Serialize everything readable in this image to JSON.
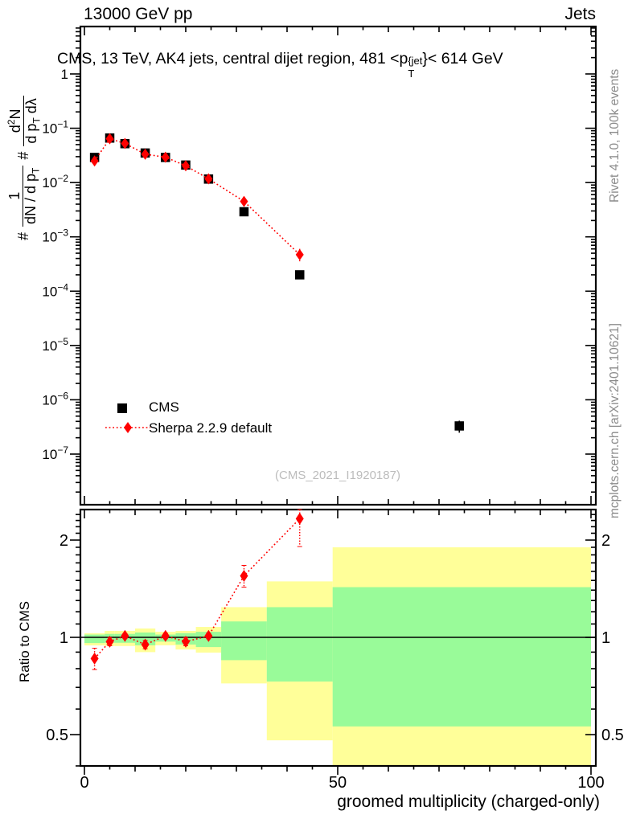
{
  "header": {
    "beam": "13000 GeV pp",
    "process": "Jets"
  },
  "title": {
    "pre": "CMS, 13 TeV, AK4 jets, central dijet region, 481 <p",
    "sup": "{jet",
    "sub": "T",
    "post": "}< 614 GeV"
  },
  "ylabel": {
    "hash1": "#",
    "f1_num": "1",
    "f1_den": "dN / d p",
    "f1_den_sub": "T",
    "hash2": "#",
    "f2_num_pre": "d",
    "f2_num_sup": "2",
    "f2_num_post": "N",
    "f2_den_pre": "d p",
    "f2_den_sub": "T",
    "f2_den_post": " dλ"
  },
  "legend": {
    "items": [
      {
        "label": "CMS",
        "marker": "black-square"
      },
      {
        "label": "Sherpa 2.2.9 default",
        "marker": "red-diamond-dotted-line"
      }
    ]
  },
  "watermark": "(CMS_2021_I1920187)",
  "credits": {
    "top": "Rivet 4.1.0,  100k events",
    "bottom": "mcplots.cern.ch [arXiv:2401.10621]"
  },
  "ratio_ylabel": "Ratio to CMS",
  "xlabel": "groomed multiplicity (charged-only)",
  "colors": {
    "cms": "#000000",
    "sherpa": "#ff0000",
    "band_yellow": "#ffff99",
    "band_green": "#99fb99",
    "frame": "#000000",
    "credits_gray": "#8b8b8b",
    "watermark_gray": "#bcbcbc"
  },
  "chart_data": [
    {
      "type": "scatter",
      "panel": "main",
      "title": "CMS, 13 TeV, AK4 jets, central dijet region, 481 <p_T^jet < 614 GeV",
      "xlabel": "groomed multiplicity (charged-only)",
      "ylabel": "# 1/(dN/dp_T) # d2N/(dp_T dLambda)",
      "ylog": true,
      "xlim": [
        -0.8,
        101
      ],
      "ylim": [
        1.2e-08,
        7.4
      ],
      "x_major_ticks": [
        0,
        50,
        100
      ],
      "y_decades": [
        0,
        -1,
        -2,
        -3,
        -4,
        -5,
        -6,
        -7
      ],
      "grid": false,
      "legend_position": "left-middle",
      "series": [
        {
          "name": "CMS",
          "marker": "square",
          "color": "#000000",
          "x": [
            2,
            5,
            8,
            12,
            16,
            20,
            24.5,
            31.5,
            42.5,
            74
          ],
          "y": [
            0.029,
            0.066,
            0.052,
            0.035,
            0.029,
            0.021,
            0.0116,
            0.0029,
            0.0002,
            3.3e-07
          ],
          "yerr_rel": [
            0.07,
            0.03,
            0.03,
            0.03,
            0.03,
            0.03,
            0.035,
            0.05,
            0.08,
            0.25
          ]
        },
        {
          "name": "Sherpa 2.2.9 default",
          "marker": "diamond",
          "line": "dotted",
          "color": "#ff0000",
          "x": [
            2,
            5,
            8,
            12,
            16,
            20,
            24.5,
            31.5,
            42.5
          ],
          "y": [
            0.025,
            0.064,
            0.0525,
            0.0333,
            0.0293,
            0.0204,
            0.0117,
            0.0045,
            0.00047
          ],
          "yerr_rel": [
            0.13,
            0.04,
            0.03,
            0.03,
            0.03,
            0.035,
            0.04,
            0.09,
            0.28
          ]
        }
      ]
    },
    {
      "type": "ratio",
      "panel": "ratio",
      "ylabel": "Ratio to CMS",
      "ylog": true,
      "ylim": [
        0.4,
        2.5
      ],
      "y_major_ticks": [
        0.5,
        1,
        2
      ],
      "reference_line": 1,
      "bands": [
        {
          "x0": 0,
          "x1": 4,
          "yellow": [
            0.944,
            1.03
          ],
          "green": [
            0.96,
            1.02
          ]
        },
        {
          "x0": 4,
          "x1": 6,
          "yellow": [
            0.94,
            1.047
          ],
          "green": [
            0.962,
            1.025
          ]
        },
        {
          "x0": 6,
          "x1": 10,
          "yellow": [
            0.94,
            1.047
          ],
          "green": [
            0.962,
            1.025
          ]
        },
        {
          "x0": 10,
          "x1": 14,
          "yellow": [
            0.9,
            1.065
          ],
          "green": [
            0.945,
            1.035
          ]
        },
        {
          "x0": 14,
          "x1": 18,
          "yellow": [
            0.945,
            1.04
          ],
          "green": [
            0.97,
            1.02
          ]
        },
        {
          "x0": 18,
          "x1": 22,
          "yellow": [
            0.917,
            1.047
          ],
          "green": [
            0.95,
            1.03
          ]
        },
        {
          "x0": 22,
          "x1": 27,
          "yellow": [
            0.897,
            1.077
          ],
          "green": [
            0.933,
            1.04
          ]
        },
        {
          "x0": 27,
          "x1": 36,
          "yellow": [
            0.72,
            1.24
          ],
          "green": [
            0.85,
            1.12
          ]
        },
        {
          "x0": 36,
          "x1": 49,
          "yellow": [
            0.48,
            1.49
          ],
          "green": [
            0.73,
            1.24
          ]
        },
        {
          "x0": 49,
          "x1": 100,
          "yellow": [
            0.4,
            1.9
          ],
          "green": [
            0.53,
            1.43
          ]
        }
      ],
      "points": {
        "name": "Sherpa 2.2.9 default / CMS",
        "x": [
          2,
          5,
          8,
          12,
          16,
          20,
          24.5,
          31.5,
          42.5
        ],
        "y": [
          0.86,
          0.97,
          1.01,
          0.95,
          1.01,
          0.97,
          1.01,
          1.55,
          2.33
        ],
        "yerr": [
          0.065,
          0.028,
          0.018,
          0.028,
          0.02,
          0.028,
          0.02,
          0.12,
          0.42
        ]
      }
    }
  ]
}
